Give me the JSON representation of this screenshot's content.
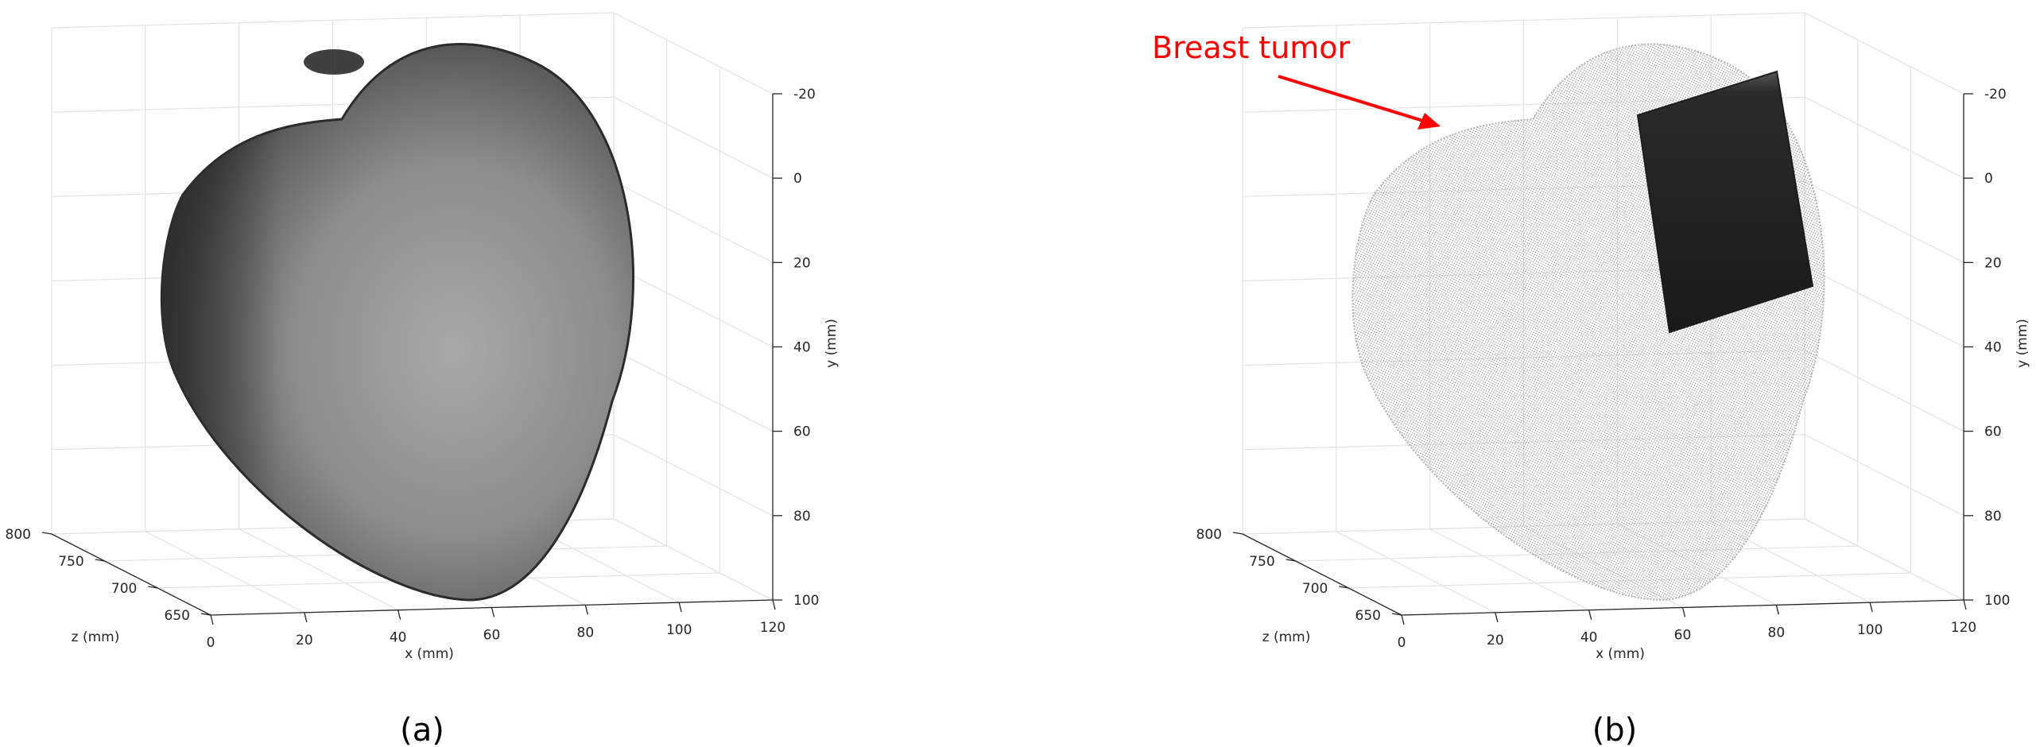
{
  "colors": {
    "annotation": "#ff0000",
    "grid": "#e3e3e3",
    "axis": "#262626",
    "surface_a_dark": "#2b2b2b",
    "surface_a_light": "#a8a8a8",
    "pointcloud_b": "#b4b4b4",
    "ultrasound_plane": "#1c1c1c"
  },
  "chart_data": [
    {
      "type": "surface",
      "panel_label": "(a)",
      "render": "shaded-breast-surface",
      "xlabel": "x (mm)",
      "ylabel": "y (mm)",
      "zlabel": "z (mm)",
      "x_ticks": [
        "0",
        "20",
        "40",
        "60",
        "80",
        "100",
        "120"
      ],
      "y_ticks": [
        "-20",
        "0",
        "20",
        "40",
        "60",
        "80",
        "100"
      ],
      "z_ticks": [
        "800",
        "750",
        "700",
        "650"
      ],
      "xlim": [
        0,
        120
      ],
      "ylim": [
        -20,
        100
      ],
      "zlim": [
        650,
        800
      ],
      "y_reversed": true,
      "grid": true,
      "box": "3d-box"
    },
    {
      "type": "scatter3d",
      "panel_label": "(b)",
      "render": "point-cloud-with-ultrasound-plane",
      "xlabel": "x (mm)",
      "ylabel": "y (mm)",
      "zlabel": "z (mm)",
      "x_ticks": [
        "0",
        "20",
        "40",
        "60",
        "80",
        "100",
        "120"
      ],
      "y_ticks": [
        "-20",
        "0",
        "20",
        "40",
        "60",
        "80",
        "100"
      ],
      "z_ticks": [
        "800",
        "750",
        "700",
        "650"
      ],
      "xlim": [
        0,
        120
      ],
      "ylim": [
        -20,
        100
      ],
      "zlim": [
        650,
        800
      ],
      "y_reversed": true,
      "grid": true,
      "box": "3d-box",
      "annotation": {
        "text": "Breast tumor",
        "arrow": true
      }
    }
  ]
}
